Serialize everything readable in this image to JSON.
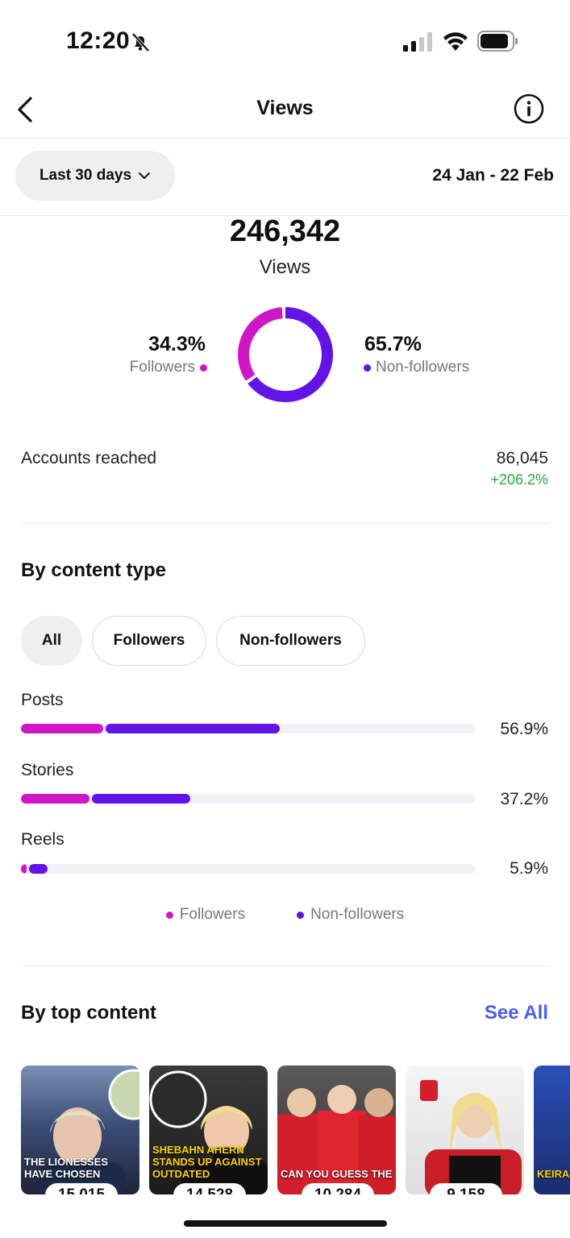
{
  "status_bar": {
    "time": "12:20"
  },
  "header": {
    "title": "Views"
  },
  "filter": {
    "range_label": "Last 30 days",
    "date_range": "24 Jan - 22 Feb"
  },
  "summary": {
    "total": "246,342",
    "label": "Views",
    "followers_pct": "34.3%",
    "followers_label": "Followers",
    "nonfollowers_pct": "65.7%",
    "nonfollowers_label": "Non-followers",
    "followers_share": 0.343
  },
  "accounts_reached": {
    "label": "Accounts reached",
    "value": "86,045",
    "change": "+206.2%"
  },
  "content_type": {
    "title": "By content type",
    "filters": [
      "All",
      "Followers",
      "Non-followers"
    ],
    "rows": [
      {
        "label": "Posts",
        "pct": "56.9%",
        "followers_fraction": 0.18,
        "total_fraction": 0.569
      },
      {
        "label": "Stories",
        "pct": "37.2%",
        "followers_fraction": 0.15,
        "total_fraction": 0.372
      },
      {
        "label": "Reels",
        "pct": "5.9%",
        "followers_fraction": 0.012,
        "total_fraction": 0.059
      }
    ],
    "legend": {
      "followers": "Followers",
      "nonfollowers": "Non-followers"
    }
  },
  "top_content": {
    "title": "By top content",
    "see_all": "See All",
    "items": [
      {
        "caption": "THE LIONESSES HAVE CHOSEN",
        "count": "15,015"
      },
      {
        "caption": "SHEBAHN AHERN STANDS UP AGAINST OUTDATED",
        "count": "14,528"
      },
      {
        "caption": "CAN YOU GUESS THE",
        "count": "10,284"
      },
      {
        "caption": "",
        "count": "9,158"
      },
      {
        "caption": "KEIRA",
        "count": ""
      }
    ]
  },
  "colors": {
    "followers": "#d116c8",
    "nonfollowers": "#6312e8",
    "positive": "#2ea54a",
    "link": "#4a5df5"
  }
}
